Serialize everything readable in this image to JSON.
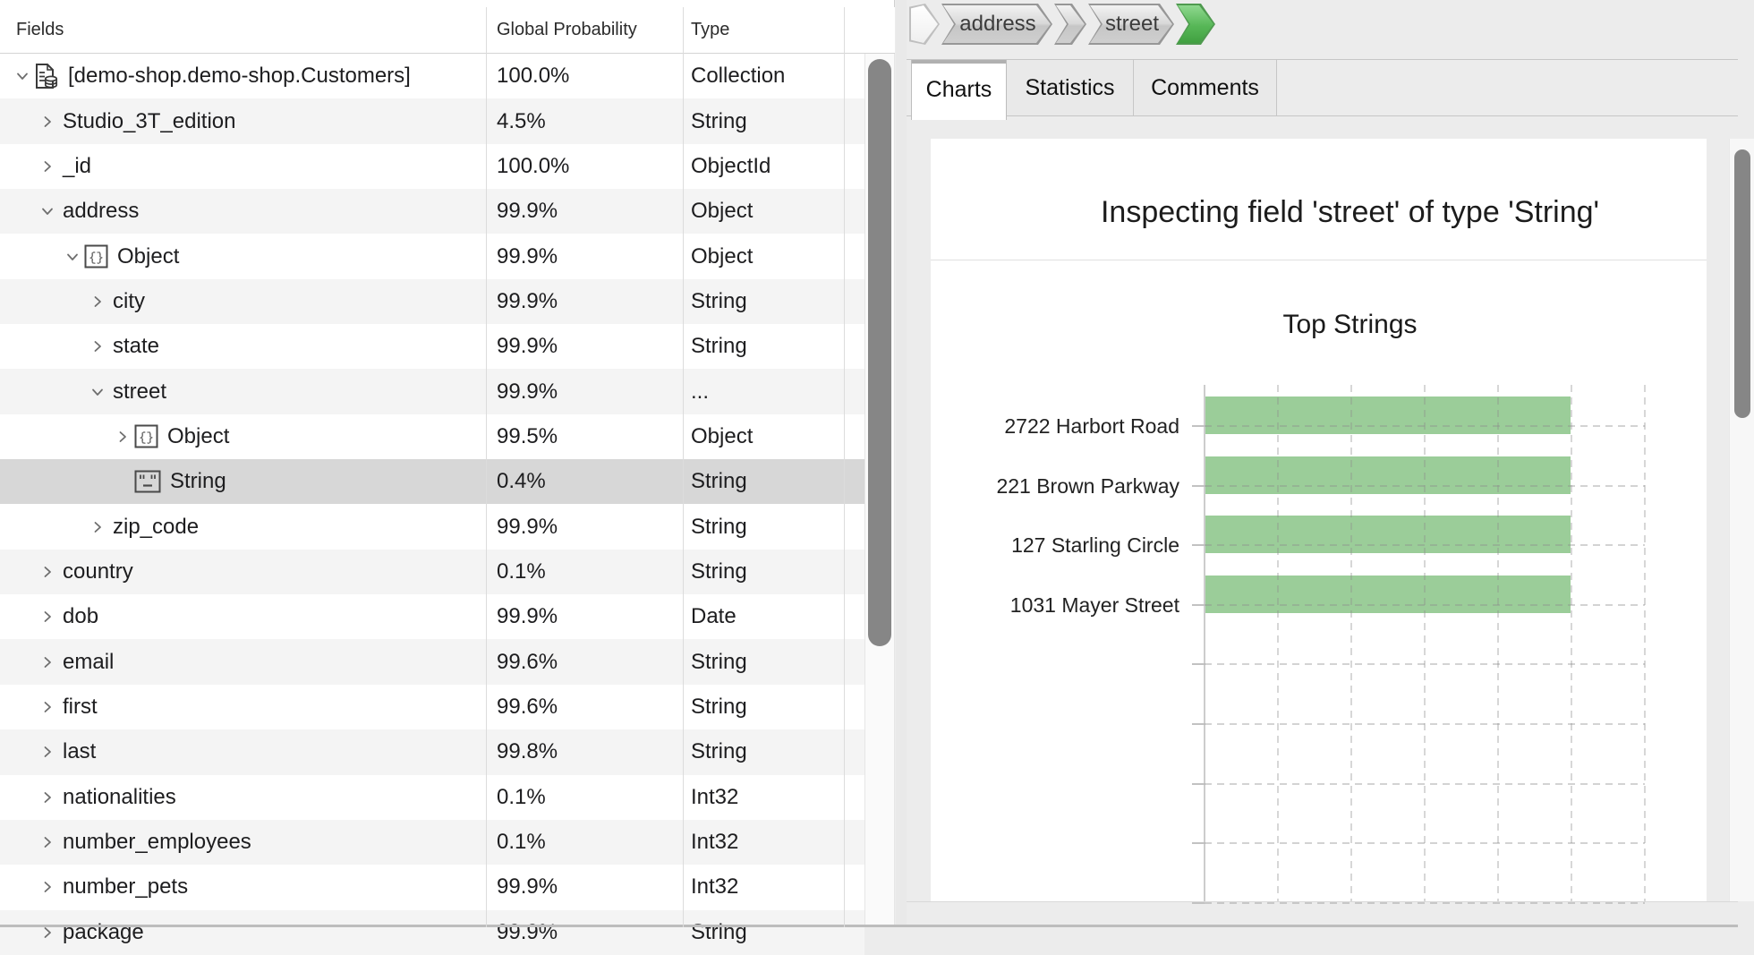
{
  "schema_tree": {
    "columns": [
      "Fields",
      "Global Probability",
      "Type"
    ],
    "rows": [
      {
        "label": "[demo-shop.demo-shop.Customers]",
        "level": 0,
        "chevron": "expanded",
        "icon": "collection",
        "probability": "100.0%",
        "type": "Collection",
        "selected": false
      },
      {
        "label": "Studio_3T_edition",
        "level": 1,
        "chevron": "collapsed",
        "icon": null,
        "probability": "4.5%",
        "type": "String",
        "selected": false
      },
      {
        "label": "_id",
        "level": 1,
        "chevron": "collapsed",
        "icon": null,
        "probability": "100.0%",
        "type": "ObjectId",
        "selected": false
      },
      {
        "label": "address",
        "level": 1,
        "chevron": "expanded",
        "icon": null,
        "probability": "99.9%",
        "type": "Object",
        "selected": false
      },
      {
        "label": "Object",
        "level": 2,
        "chevron": "expanded",
        "icon": "object",
        "probability": "99.9%",
        "type": "Object",
        "selected": false
      },
      {
        "label": "city",
        "level": 3,
        "chevron": "collapsed",
        "icon": null,
        "probability": "99.9%",
        "type": "String",
        "selected": false
      },
      {
        "label": "state",
        "level": 3,
        "chevron": "collapsed",
        "icon": null,
        "probability": "99.9%",
        "type": "String",
        "selected": false
      },
      {
        "label": "street",
        "level": 3,
        "chevron": "expanded",
        "icon": null,
        "probability": "99.9%",
        "type": "...",
        "selected": false
      },
      {
        "label": "Object",
        "level": 4,
        "chevron": "collapsed",
        "icon": "object",
        "probability": "99.5%",
        "type": "Object",
        "selected": false
      },
      {
        "label": "String",
        "level": 4,
        "chevron": "none",
        "icon": "string",
        "probability": "0.4%",
        "type": "String",
        "selected": true
      },
      {
        "label": "zip_code",
        "level": 3,
        "chevron": "collapsed",
        "icon": null,
        "probability": "99.9%",
        "type": "String",
        "selected": false
      },
      {
        "label": "country",
        "level": 1,
        "chevron": "collapsed",
        "icon": null,
        "probability": "0.1%",
        "type": "String",
        "selected": false
      },
      {
        "label": "dob",
        "level": 1,
        "chevron": "collapsed",
        "icon": null,
        "probability": "99.9%",
        "type": "Date",
        "selected": false
      },
      {
        "label": "email",
        "level": 1,
        "chevron": "collapsed",
        "icon": null,
        "probability": "99.6%",
        "type": "String",
        "selected": false
      },
      {
        "label": "first",
        "level": 1,
        "chevron": "collapsed",
        "icon": null,
        "probability": "99.6%",
        "type": "String",
        "selected": false
      },
      {
        "label": "last",
        "level": 1,
        "chevron": "collapsed",
        "icon": null,
        "probability": "99.8%",
        "type": "String",
        "selected": false
      },
      {
        "label": "nationalities",
        "level": 1,
        "chevron": "collapsed",
        "icon": null,
        "probability": "0.1%",
        "type": "Int32",
        "selected": false
      },
      {
        "label": "number_employees",
        "level": 1,
        "chevron": "collapsed",
        "icon": null,
        "probability": "0.1%",
        "type": "Int32",
        "selected": false
      },
      {
        "label": "number_pets",
        "level": 1,
        "chevron": "collapsed",
        "icon": null,
        "probability": "99.9%",
        "type": "Int32",
        "selected": false
      },
      {
        "label": "package",
        "level": 1,
        "chevron": "collapsed",
        "icon": null,
        "probability": "99.9%",
        "type": "String",
        "selected": false,
        "clipped": true
      }
    ]
  },
  "breadcrumb": {
    "items": [
      "address",
      "street"
    ]
  },
  "tabs": [
    {
      "label": "Charts",
      "active": true
    },
    {
      "label": "Statistics",
      "active": false
    },
    {
      "label": "Comments",
      "active": false
    }
  ],
  "chart_data": {
    "type": "bar",
    "orientation": "horizontal",
    "panel_title": "Inspecting field 'street' of type 'String'",
    "title": "Top Strings",
    "categories": [
      "2722 Harbort Road",
      "221 Brown Parkway",
      "127 Starling Circle",
      "1031 Mayer Street"
    ],
    "values": [
      5,
      5,
      5,
      5
    ],
    "xlim": [
      0,
      6
    ],
    "x_gridline_count": 6,
    "x_tick_labels_visible": false,
    "empty_category_slots": 5,
    "grid": "dashed",
    "legend": "none",
    "bar_color": "#9bcd99"
  },
  "colors": {
    "bar_green": "#9bcd99",
    "breadcrumb_green": "#57b757",
    "selected_row": "#d7d7d7",
    "panel_background": "#ececec",
    "scrollbar_thumb": "#868686"
  }
}
